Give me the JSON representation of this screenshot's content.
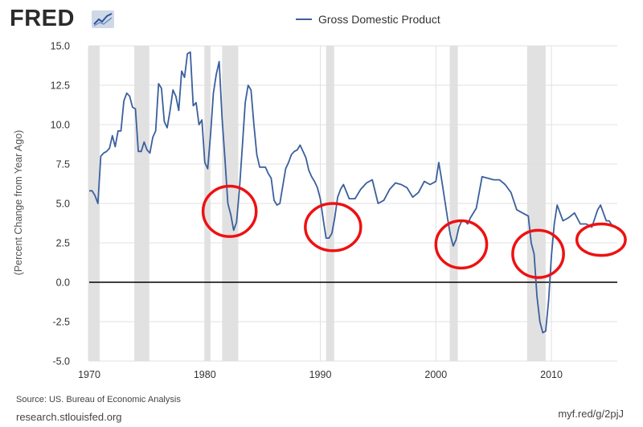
{
  "brand": {
    "logo_text": "FRED",
    "logo_icon": "line-chart-icon"
  },
  "footer": {
    "source": "Source: US. Bureau of Economic Analysis",
    "site": "research.stlouisfed.org",
    "short_url": "myf.red/g/2pjJ"
  },
  "colors": {
    "series": "#3b5f9d",
    "recession": "#e1e1e1",
    "annotation": "#ee1111",
    "zero_line": "#000000",
    "grid": "#e0e0e0"
  },
  "chart_data": {
    "type": "line",
    "ylabel": "(Percent Change from Year Ago)",
    "ylim": [
      -5.0,
      15.0
    ],
    "xlim": [
      1970,
      2015.7
    ],
    "y_ticks": [
      {
        "value": 15.0,
        "label": "15.0"
      },
      {
        "value": 12.5,
        "label": "12.5"
      },
      {
        "value": 10.0,
        "label": "10.0"
      },
      {
        "value": 7.5,
        "label": "7.5"
      },
      {
        "value": 5.0,
        "label": "5.0"
      },
      {
        "value": 2.5,
        "label": "2.5"
      },
      {
        "value": 0.0,
        "label": "0.0"
      },
      {
        "value": -2.5,
        "label": "-2.5"
      },
      {
        "value": -5.0,
        "label": "-5.0"
      }
    ],
    "x_ticks": [
      {
        "value": 1970,
        "label": "1970"
      },
      {
        "value": 1980,
        "label": "1980"
      },
      {
        "value": 1990,
        "label": "1990"
      },
      {
        "value": 2000,
        "label": "2000"
      },
      {
        "value": 2010,
        "label": "2010"
      }
    ],
    "grid": true,
    "legend": "top-center",
    "recessions": [
      [
        1969.9,
        1970.9
      ],
      [
        1973.9,
        1975.2
      ],
      [
        1980.0,
        1980.5
      ],
      [
        1981.5,
        1982.9
      ],
      [
        1990.5,
        1991.2
      ],
      [
        2001.2,
        2001.9
      ],
      [
        2007.9,
        2009.5
      ]
    ],
    "series": [
      {
        "name": "Gross Domestic Product",
        "x": [
          1970.0,
          1970.25,
          1970.5,
          1970.75,
          1971.0,
          1971.25,
          1971.5,
          1971.75,
          1972.0,
          1972.25,
          1972.5,
          1972.75,
          1973.0,
          1973.25,
          1973.5,
          1973.75,
          1974.0,
          1974.25,
          1974.5,
          1974.75,
          1975.0,
          1975.25,
          1975.5,
          1975.75,
          1976.0,
          1976.25,
          1976.5,
          1976.75,
          1977.0,
          1977.25,
          1977.5,
          1977.75,
          1978.0,
          1978.25,
          1978.5,
          1978.75,
          1979.0,
          1979.25,
          1979.5,
          1979.75,
          1980.0,
          1980.25,
          1980.5,
          1980.75,
          1981.0,
          1981.25,
          1981.5,
          1981.75,
          1982.0,
          1982.25,
          1982.5,
          1982.75,
          1983.0,
          1983.25,
          1983.5,
          1983.75,
          1984.0,
          1984.25,
          1984.5,
          1984.75,
          1985.0,
          1985.25,
          1985.5,
          1985.75,
          1986.0,
          1986.25,
          1986.5,
          1986.75,
          1987.0,
          1987.25,
          1987.5,
          1987.75,
          1988.0,
          1988.25,
          1988.5,
          1988.75,
          1989.0,
          1989.25,
          1989.5,
          1989.75,
          1990.0,
          1990.25,
          1990.5,
          1990.75,
          1991.0,
          1991.25,
          1991.5,
          1991.75,
          1992.0,
          1992.5,
          1993.0,
          1993.5,
          1994.0,
          1994.5,
          1995.0,
          1995.5,
          1996.0,
          1996.5,
          1997.0,
          1997.5,
          1998.0,
          1998.5,
          1999.0,
          1999.5,
          2000.0,
          2000.25,
          2000.5,
          2000.75,
          2001.0,
          2001.25,
          2001.5,
          2001.75,
          2002.0,
          2002.25,
          2002.5,
          2002.75,
          2003.0,
          2003.5,
          2004.0,
          2004.5,
          2005.0,
          2005.5,
          2006.0,
          2006.5,
          2007.0,
          2007.5,
          2008.0,
          2008.25,
          2008.5,
          2008.75,
          2009.0,
          2009.25,
          2009.5,
          2009.75,
          2010.0,
          2010.25,
          2010.5,
          2010.75,
          2011.0,
          2011.5,
          2012.0,
          2012.5,
          2013.0,
          2013.5,
          2014.0,
          2014.25,
          2014.5,
          2014.75,
          2015.0,
          2015.25,
          2015.5
        ],
        "values": [
          5.8,
          5.8,
          5.5,
          5.0,
          8.0,
          8.2,
          8.3,
          8.5,
          9.3,
          8.6,
          9.6,
          9.6,
          11.5,
          12.0,
          11.8,
          11.1,
          11.0,
          8.3,
          8.3,
          8.9,
          8.4,
          8.2,
          9.2,
          9.6,
          12.6,
          12.3,
          10.2,
          9.8,
          10.9,
          12.2,
          11.8,
          10.9,
          13.4,
          13.0,
          14.5,
          14.6,
          11.2,
          11.4,
          10.0,
          10.3,
          7.6,
          7.2,
          9.4,
          12.0,
          13.2,
          14.0,
          10.4,
          7.8,
          5.0,
          4.3,
          3.3,
          3.8,
          5.9,
          8.6,
          11.4,
          12.5,
          12.2,
          10.0,
          8.1,
          7.3,
          7.3,
          7.3,
          6.9,
          6.6,
          5.2,
          4.9,
          5.0,
          6.1,
          7.2,
          7.6,
          8.1,
          8.3,
          8.4,
          8.7,
          8.3,
          7.9,
          7.1,
          6.7,
          6.4,
          6.0,
          5.3,
          4.0,
          2.8,
          2.8,
          3.1,
          4.1,
          5.4,
          5.9,
          6.2,
          5.3,
          5.3,
          5.9,
          6.3,
          6.5,
          5.0,
          5.2,
          5.9,
          6.3,
          6.2,
          6.0,
          5.4,
          5.7,
          6.4,
          6.2,
          6.4,
          7.6,
          6.5,
          5.3,
          4.1,
          3.0,
          2.3,
          2.7,
          3.5,
          3.9,
          3.9,
          3.7,
          4.1,
          4.7,
          6.7,
          6.6,
          6.5,
          6.5,
          6.2,
          5.7,
          4.6,
          4.4,
          4.2,
          2.5,
          1.8,
          -0.9,
          -2.5,
          -3.2,
          -3.1,
          -1.2,
          1.7,
          3.7,
          4.9,
          4.4,
          3.9,
          4.1,
          4.4,
          3.7,
          3.7,
          3.5,
          4.6,
          4.9,
          4.4,
          3.9,
          3.9,
          3.6,
          3.5
        ]
      }
    ],
    "annotations": [
      {
        "type": "circle",
        "cx": 1982.15,
        "cy": 4.5,
        "rx_years": 2.3,
        "ry_units": 1.6
      },
      {
        "type": "circle",
        "cx": 1991.1,
        "cy": 3.5,
        "rx_years": 2.4,
        "ry_units": 1.5
      },
      {
        "type": "circle",
        "cx": 2002.2,
        "cy": 2.4,
        "rx_years": 2.2,
        "ry_units": 1.5
      },
      {
        "type": "circle",
        "cx": 2008.85,
        "cy": 1.8,
        "rx_years": 2.2,
        "ry_units": 1.5
      },
      {
        "type": "circle",
        "cx": 2014.3,
        "cy": 2.7,
        "rx_years": 2.1,
        "ry_units": 1.0
      }
    ]
  }
}
